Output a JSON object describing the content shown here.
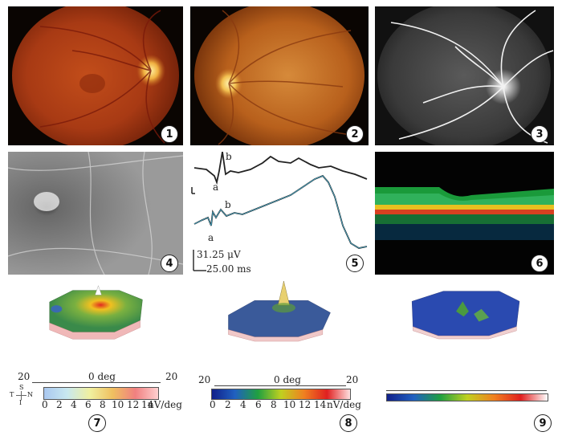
{
  "panels": [
    {
      "number": "1"
    },
    {
      "number": "2"
    },
    {
      "number": "3"
    },
    {
      "number": "4"
    },
    {
      "number": "5",
      "wave_labels": [
        "a",
        "b",
        "a",
        "b"
      ],
      "scale_voltage": "31.25 μV",
      "scale_time": "25.00 ms"
    },
    {
      "number": "6"
    },
    {
      "number": "7",
      "axis_left": "20",
      "axis_center": "0 deg",
      "axis_right": "20",
      "orientation": [
        "S",
        "T",
        "N",
        "I"
      ],
      "scale_ticks": [
        "0",
        "2",
        "4",
        "6",
        "8",
        "10",
        "12",
        "14"
      ],
      "scale_unit": "nV/deg"
    },
    {
      "number": "8",
      "axis_left": "20",
      "axis_center": "0 deg",
      "axis_right": "20",
      "scale_ticks": [
        "0",
        "2",
        "4",
        "6",
        "8",
        "10",
        "12",
        "14"
      ],
      "scale_unit": "nV/deg"
    },
    {
      "number": "9"
    }
  ],
  "colors": {
    "fundus_orange": "#c2501c",
    "angiogram_gray": "#8a8a8a",
    "oct_green": "#2e9a3a",
    "mferg_blue": "#3a5a9a",
    "mferg_green": "#5c9a3a"
  }
}
